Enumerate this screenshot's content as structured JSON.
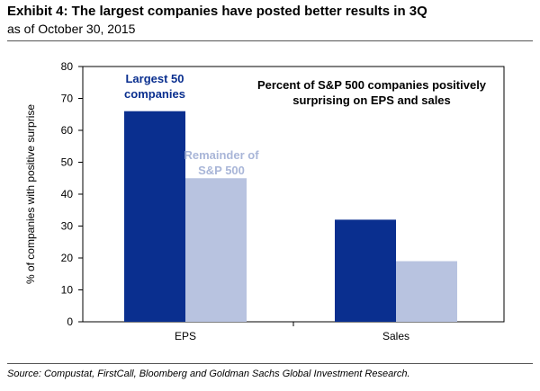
{
  "header": {
    "title": "Exhibit 4: The largest companies have posted better results in 3Q",
    "subtitle": "as of October 30, 2015"
  },
  "footer": {
    "source": "Source: Compustat, FirstCall, Bloomberg  and Goldman Sachs Global Investment Research."
  },
  "chart_data": {
    "type": "bar",
    "categories": [
      "EPS",
      "Sales"
    ],
    "series": [
      {
        "name": "Largest 50 companies",
        "label_lines": [
          "Largest 50",
          "companies"
        ],
        "values": [
          66,
          32
        ],
        "color": "#0a2f8f"
      },
      {
        "name": "Remainder of S&P 500",
        "label_lines": [
          "Remainder of",
          "S&P 500"
        ],
        "values": [
          45,
          19
        ],
        "color": "#b8c3e0"
      }
    ],
    "annotation_lines": [
      "Percent of S&P 500 companies positively",
      "surprising on EPS and sales"
    ],
    "ylabel": "% of companies with positive surprise",
    "ylim": [
      0,
      80
    ],
    "yticks": [
      0,
      10,
      20,
      30,
      40,
      50,
      60,
      70,
      80
    ],
    "grid": false
  }
}
